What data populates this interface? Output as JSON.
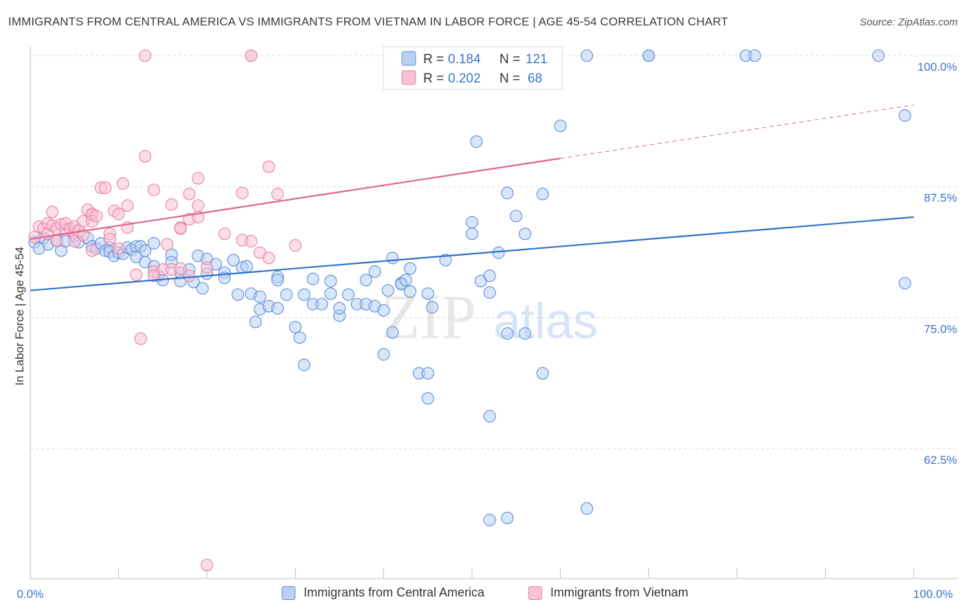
{
  "title": "IMMIGRANTS FROM CENTRAL AMERICA VS IMMIGRANTS FROM VIETNAM IN LABOR FORCE | AGE 45-54 CORRELATION CHART",
  "source": "Source: ZipAtlas.com",
  "watermark": {
    "zip": "ZIP",
    "atlas": "atlas"
  },
  "legend": {
    "row1": {
      "r_label": "R =",
      "r_value": "0.184",
      "n_label": "N =",
      "n_value": "121"
    },
    "row2": {
      "r_label": "R =",
      "r_value": "0.202",
      "n_label": "N =",
      "n_value": "68"
    }
  },
  "bottom_legend": {
    "series1": "Immigrants from Central America",
    "series2": "Immigrants from Vietnam"
  },
  "chart_data": {
    "type": "scatter",
    "title": "IMMIGRANTS FROM CENTRAL AMERICA VS IMMIGRANTS FROM VIETNAM IN LABOR FORCE | AGE 45-54 CORRELATION CHART",
    "xlabel": "",
    "ylabel": "In Labor Force | Age 45-54",
    "xlim": [
      0,
      100
    ],
    "ylim": [
      50.5,
      101.5
    ],
    "x_tick_labels": [
      "0.0%",
      "100.0%"
    ],
    "y_ticks": [
      62.5,
      75.0,
      87.5,
      100.0
    ],
    "y_tick_labels": [
      "62.5%",
      "75.0%",
      "87.5%",
      "100.0%"
    ],
    "grid": "horizontal dashed",
    "legend_position": "top-center",
    "colors": {
      "series1": "#5b8fd9",
      "series1_fill": "#b9d0f3",
      "series1_line": "#2f6fcc",
      "series2": "#e97fa3",
      "series2_fill": "#f7c3d4",
      "series2_line": "#e0628f"
    },
    "series": [
      {
        "name": "Immigrants from Central America",
        "r": 0.184,
        "n": 121,
        "trend": {
          "x0": 0,
          "y0": 77.6,
          "x1": 100,
          "y1": 84.6
        },
        "points": [
          [
            0.5,
            82.2
          ],
          [
            1.5,
            82.6
          ],
          [
            2,
            82.0
          ],
          [
            3,
            82.4
          ],
          [
            3.5,
            81.4
          ],
          [
            5,
            82.8
          ],
          [
            5.5,
            82.2
          ],
          [
            6.5,
            82.6
          ],
          [
            7,
            81.8
          ],
          [
            7.5,
            81.6
          ],
          [
            8,
            82.1
          ],
          [
            8.5,
            81.4
          ],
          [
            9,
            81.7
          ],
          [
            9,
            81.3
          ],
          [
            9.5,
            80.9
          ],
          [
            10,
            81.2
          ],
          [
            10.5,
            81.1
          ],
          [
            11,
            81.7
          ],
          [
            11.5,
            81.5
          ],
          [
            12,
            81.8
          ],
          [
            12,
            80.8
          ],
          [
            12.5,
            81.8
          ],
          [
            13,
            80.3
          ],
          [
            13,
            81.4
          ],
          [
            14,
            82.1
          ],
          [
            14,
            79.9
          ],
          [
            14.5,
            79.0
          ],
          [
            15,
            78.6
          ],
          [
            16,
            81.0
          ],
          [
            16,
            80.3
          ],
          [
            17,
            78.5
          ],
          [
            17,
            79.3
          ],
          [
            18,
            79.6
          ],
          [
            18.5,
            78.4
          ],
          [
            19,
            80.9
          ],
          [
            19.5,
            77.8
          ],
          [
            20,
            79.2
          ],
          [
            20,
            80.6
          ],
          [
            21,
            80.1
          ],
          [
            22,
            79.3
          ],
          [
            22,
            78.8
          ],
          [
            23,
            80.5
          ],
          [
            23.5,
            77.2
          ],
          [
            24,
            79.8
          ],
          [
            24.5,
            79.9
          ],
          [
            25,
            77.3
          ],
          [
            25.5,
            74.6
          ],
          [
            26,
            77.0
          ],
          [
            26,
            75.8
          ],
          [
            27,
            76.1
          ],
          [
            28,
            78.9
          ],
          [
            28,
            75.9
          ],
          [
            28,
            78.6
          ],
          [
            29,
            77.2
          ],
          [
            30,
            74.1
          ],
          [
            30.5,
            73.1
          ],
          [
            31,
            77.2
          ],
          [
            31,
            70.5
          ],
          [
            32,
            78.7
          ],
          [
            32,
            76.3
          ],
          [
            33,
            76.3
          ],
          [
            34,
            78.5
          ],
          [
            34,
            77.3
          ],
          [
            35,
            75.2
          ],
          [
            35,
            75.9
          ],
          [
            36,
            77.2
          ],
          [
            37,
            76.3
          ],
          [
            38,
            78.6
          ],
          [
            38,
            76.3
          ],
          [
            39,
            79.4
          ],
          [
            39,
            76.1
          ],
          [
            40,
            75.7
          ],
          [
            40,
            71.5
          ],
          [
            40.5,
            77.6
          ],
          [
            41,
            73.6
          ],
          [
            41,
            80.7
          ],
          [
            42,
            78.3
          ],
          [
            42,
            78.2
          ],
          [
            42.5,
            78.6
          ],
          [
            43,
            79.7
          ],
          [
            43,
            77.5
          ],
          [
            44,
            69.7
          ],
          [
            45,
            69.7
          ],
          [
            45,
            77.3
          ],
          [
            45,
            67.3
          ],
          [
            45.5,
            76.0
          ],
          [
            47,
            80.5
          ],
          [
            50,
            100.0
          ],
          [
            50,
            84.1
          ],
          [
            50,
            83.0
          ],
          [
            50.5,
            91.8
          ],
          [
            51,
            100.0
          ],
          [
            51,
            78.5
          ],
          [
            52,
            79.0
          ],
          [
            52,
            65.6
          ],
          [
            52,
            77.4
          ],
          [
            52,
            55.7
          ],
          [
            53,
            81.2
          ],
          [
            54,
            73.5
          ],
          [
            54,
            86.9
          ],
          [
            54,
            55.9
          ],
          [
            55,
            84.7
          ],
          [
            56,
            83.0
          ],
          [
            56,
            73.5
          ],
          [
            58,
            69.7
          ],
          [
            58,
            86.8
          ],
          [
            59,
            100.0
          ],
          [
            60,
            93.3
          ],
          [
            63,
            100.0
          ],
          [
            63,
            56.8
          ],
          [
            70,
            100.0
          ],
          [
            70,
            100.0
          ],
          [
            81,
            100.0
          ],
          [
            82,
            100.0
          ],
          [
            96,
            100.0
          ],
          [
            99,
            94.3
          ],
          [
            99,
            78.3
          ],
          [
            1,
            81.6
          ],
          [
            4,
            82.3
          ]
        ]
      },
      {
        "name": "Immigrants from Vietnam",
        "r": 0.202,
        "n": 68,
        "trend": {
          "x0": 0,
          "y0": 82.5,
          "x1": 60,
          "y1": 90.2,
          "dashed_to": {
            "x": 100,
            "y": 95.3
          }
        },
        "points": [
          [
            0.5,
            82.7
          ],
          [
            1,
            83.7
          ],
          [
            1.5,
            83.5
          ],
          [
            2,
            83.0
          ],
          [
            2,
            84.0
          ],
          [
            2.5,
            83.8
          ],
          [
            2.5,
            85.1
          ],
          [
            3,
            83.5
          ],
          [
            3,
            82.3
          ],
          [
            3.5,
            83.9
          ],
          [
            4,
            83.4
          ],
          [
            4,
            84.0
          ],
          [
            4.5,
            83.5
          ],
          [
            5,
            83.1
          ],
          [
            5,
            82.3
          ],
          [
            5,
            83.7
          ],
          [
            5.5,
            83.3
          ],
          [
            6,
            82.9
          ],
          [
            6,
            84.2
          ],
          [
            6.5,
            85.3
          ],
          [
            7,
            84.8
          ],
          [
            7,
            84.9
          ],
          [
            7,
            84.2
          ],
          [
            7,
            81.4
          ],
          [
            7.5,
            84.7
          ],
          [
            8,
            87.4
          ],
          [
            8.5,
            87.4
          ],
          [
            9,
            83.0
          ],
          [
            9,
            82.5
          ],
          [
            9.5,
            85.2
          ],
          [
            10,
            84.9
          ],
          [
            10,
            81.6
          ],
          [
            10.5,
            87.8
          ],
          [
            11,
            83.6
          ],
          [
            11,
            85.7
          ],
          [
            12,
            79.1
          ],
          [
            12.5,
            73.0
          ],
          [
            13,
            100.0
          ],
          [
            13,
            90.4
          ],
          [
            14,
            87.2
          ],
          [
            14,
            79.4
          ],
          [
            14,
            79.0
          ],
          [
            15,
            79.6
          ],
          [
            15.5,
            82.0
          ],
          [
            16,
            85.8
          ],
          [
            16,
            79.6
          ],
          [
            17,
            83.6
          ],
          [
            17,
            83.5
          ],
          [
            17,
            79.7
          ],
          [
            18,
            84.4
          ],
          [
            18,
            86.8
          ],
          [
            18,
            79.0
          ],
          [
            19,
            85.7
          ],
          [
            19,
            84.6
          ],
          [
            19,
            88.3
          ],
          [
            20,
            79.8
          ],
          [
            20,
            51.4
          ],
          [
            22,
            83.0
          ],
          [
            24,
            86.9
          ],
          [
            24,
            82.4
          ],
          [
            25,
            100.0
          ],
          [
            25,
            100.0
          ],
          [
            25,
            82.3
          ],
          [
            26,
            81.2
          ],
          [
            27,
            80.7
          ],
          [
            27,
            89.4
          ],
          [
            28,
            86.8
          ],
          [
            30,
            81.9
          ]
        ]
      }
    ]
  }
}
